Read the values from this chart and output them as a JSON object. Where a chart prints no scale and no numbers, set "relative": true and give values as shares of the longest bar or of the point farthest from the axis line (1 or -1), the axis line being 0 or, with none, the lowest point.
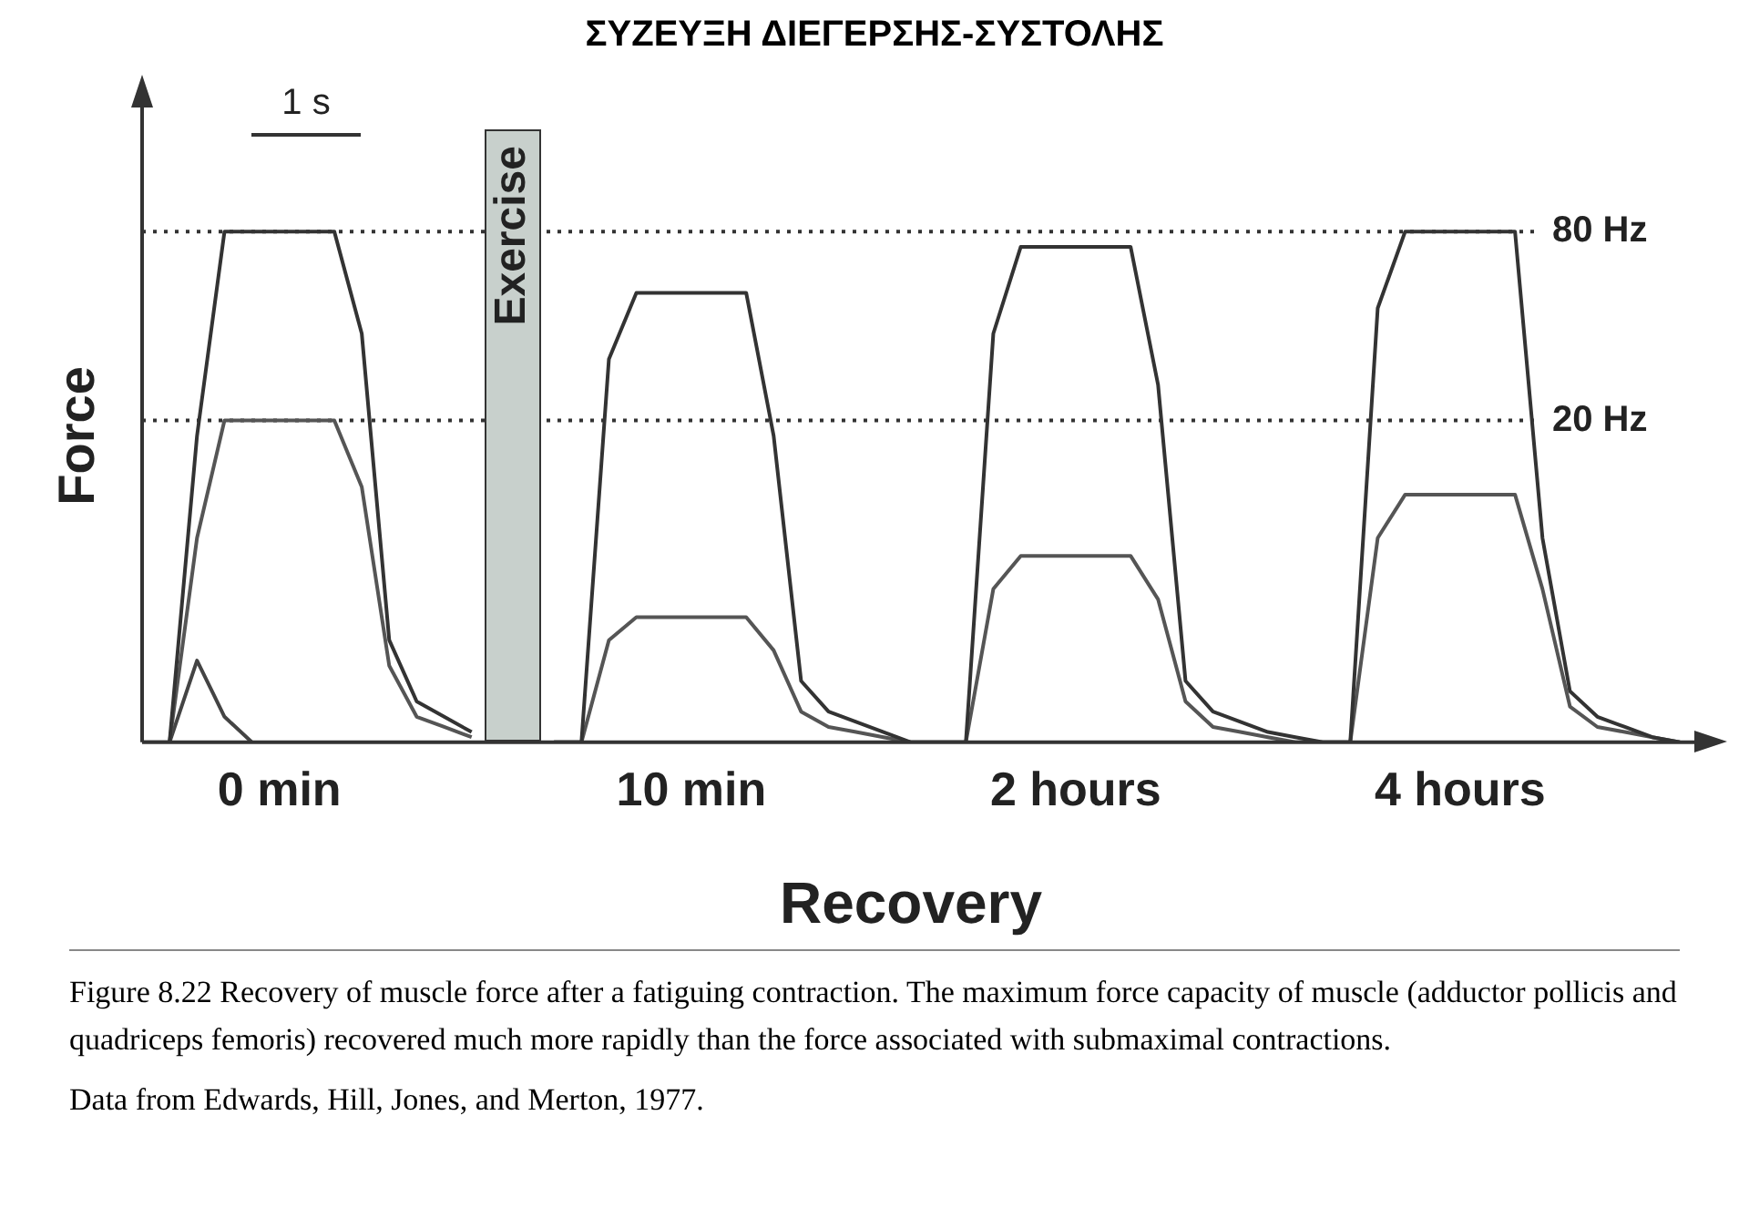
{
  "chart_data": {
    "type": "line",
    "title": "ΣΥΖΕΥΞΗ ΔΙΕΓΕΡΣΗΣ-ΣΥΣΤΟΛΗΣ",
    "xlabel": "Recovery",
    "ylabel": "Force",
    "relative": true,
    "tick_labels": "x",
    "grid": false,
    "legend": false,
    "marker": "none",
    "line_style": "solid",
    "categories": [
      null,
      null,
      null,
      null,
      null,
      "0 min",
      null,
      null,
      null,
      null,
      null,
      null,
      null,
      null,
      null,
      null,
      null,
      null,
      null,
      null,
      "10 min",
      null,
      null,
      null,
      null,
      null,
      null,
      null,
      null,
      null,
      null,
      null,
      null,
      null,
      "2 hours",
      null,
      null,
      null,
      null,
      null,
      null,
      null,
      null,
      null,
      null,
      null,
      null,
      null,
      "4 hours",
      null,
      null,
      null,
      null,
      null,
      null,
      null,
      null
    ],
    "series": [
      {
        "color": "#333333",
        "values": [
          0,
          0,
          0.6,
          1.0,
          1.0,
          1.0,
          1.0,
          1.0,
          0.8,
          0.2,
          0.08,
          0.05,
          0.02,
          null,
          null,
          0,
          0,
          0.75,
          0.88,
          0.88,
          0.88,
          0.88,
          0.88,
          0.6,
          0.12,
          0.06,
          0.04,
          0.02,
          0,
          0,
          0,
          0.8,
          0.97,
          0.97,
          0.97,
          0.97,
          0.97,
          0.7,
          0.12,
          0.06,
          0.04,
          0.02,
          0.01,
          0,
          0,
          0.85,
          1.0,
          1.0,
          1.0,
          1.0,
          1.0,
          0.4,
          0.1,
          0.05,
          0.03,
          0.01,
          0
        ]
      },
      {
        "color": "#555555",
        "values": [
          null,
          0,
          0.4,
          0.63,
          0.63,
          0.63,
          0.63,
          0.63,
          0.5,
          0.15,
          0.05,
          0.03,
          0.01,
          null,
          null,
          0,
          0,
          0.2,
          0.245,
          0.245,
          0.245,
          0.245,
          0.245,
          0.18,
          0.06,
          0.03,
          0.02,
          0.01,
          0,
          0,
          0,
          0.3,
          0.365,
          0.365,
          0.365,
          0.365,
          0.365,
          0.28,
          0.08,
          0.03,
          0.02,
          0.01,
          0,
          0,
          0,
          0.4,
          0.485,
          0.485,
          0.485,
          0.485,
          0.485,
          0.3,
          0.07,
          0.03,
          0.02,
          0.01,
          0
        ]
      },
      {
        "color": "#444444",
        "values": [
          null,
          0,
          0.16,
          0.05,
          0,
          null,
          null,
          null,
          null,
          null,
          null,
          null,
          null,
          null,
          null,
          null,
          null,
          null,
          null,
          null,
          null,
          null,
          null,
          null,
          null,
          null,
          null,
          null,
          null,
          null,
          null,
          null,
          null,
          null,
          null,
          null,
          null,
          null,
          null,
          null,
          null,
          null,
          null,
          null,
          null,
          null,
          null,
          null,
          null,
          null,
          null,
          null,
          null,
          null,
          null,
          null,
          null
        ]
      }
    ],
    "ref_lines": [
      {
        "axis": "y",
        "value": 1.0,
        "label": "80 Hz",
        "line_style": "dotted",
        "color": "#333333"
      },
      {
        "axis": "y",
        "value": 0.63,
        "label": "20 Hz",
        "line_style": "dotted",
        "color": "#333333"
      }
    ],
    "annotations": [
      "1 s",
      "Exercise",
      "Figure 8.22 Recovery of muscle force after a fatiguing contraction. The maximum force capacity of muscle (adductor pollicis and quadriceps femoris) recovered much more rapidly than the force associated with submaximal contractions.",
      "Data from Edwards, Hill, Jones, and Merton, 1977."
    ]
  }
}
